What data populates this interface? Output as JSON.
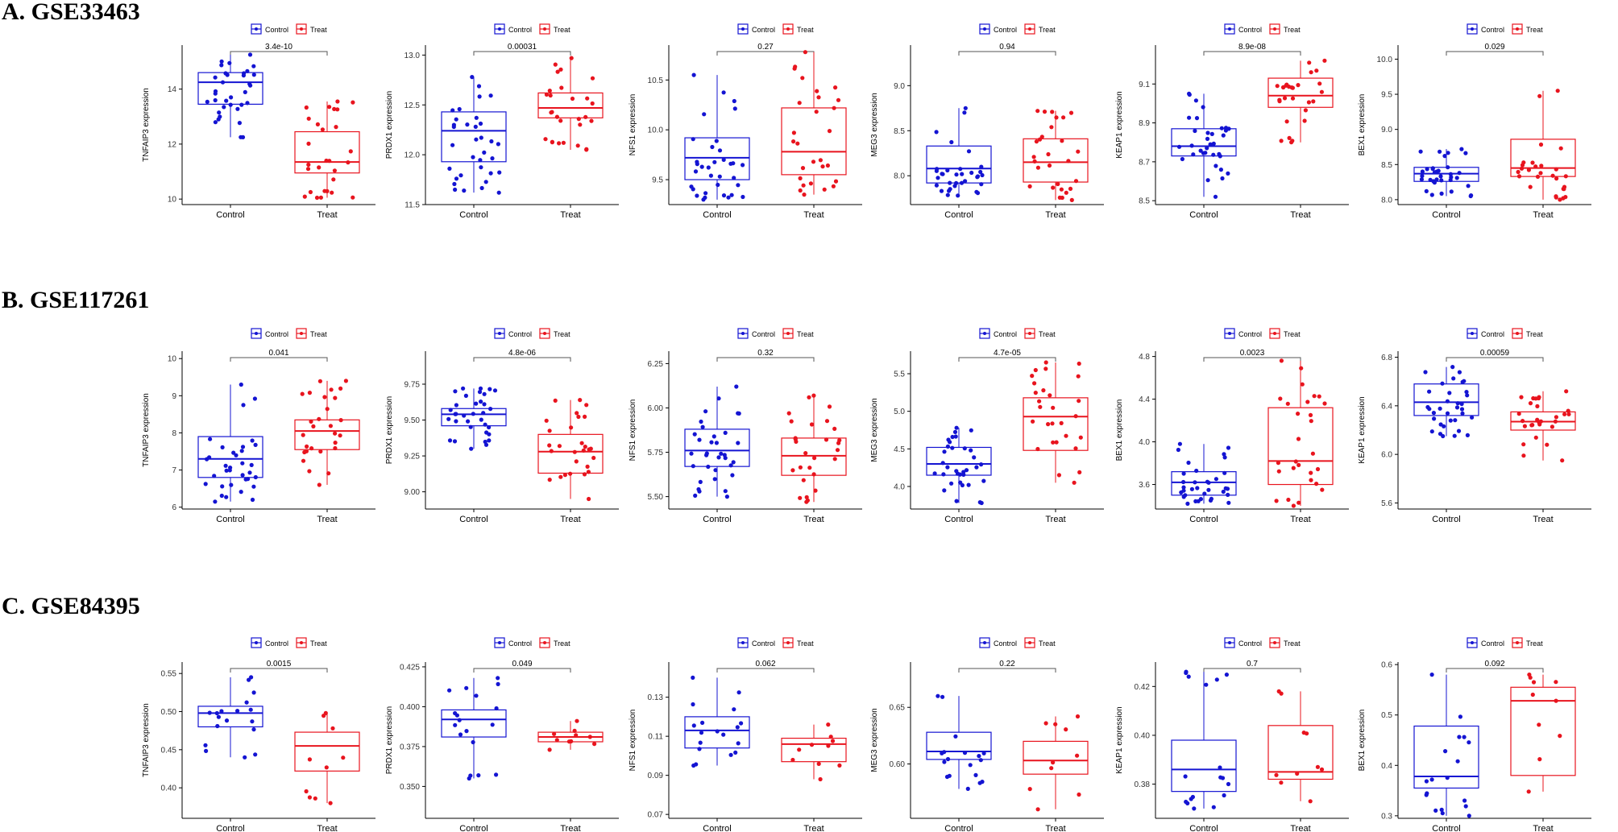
{
  "colors": {
    "control": "#1414d2",
    "treat": "#e8141e",
    "axis": "#000000",
    "bracket": "#555555"
  },
  "chart_data": [
    {
      "section": "A. GSE33463",
      "panels": [
        {
          "type": "box",
          "ylabel": "TNFAIP3 expression",
          "categories": [
            "Control",
            "Treat"
          ],
          "legend": [
            "Control",
            "Treat"
          ],
          "pvalue": "3.4e-10",
          "ylim": [
            9.8,
            15.6
          ],
          "ticks": [
            10,
            12,
            14
          ],
          "tick_labels": [
            "10",
            "12",
            "14"
          ],
          "boxes": [
            {
              "q1": 13.45,
              "median": 14.25,
              "q3": 14.6,
              "whisker_low": 12.25,
              "whisker_high": 15.25
            },
            {
              "q1": 10.95,
              "median": 11.35,
              "q3": 12.45,
              "whisker_low": 10.05,
              "whisker_high": 13.55
            }
          ]
        },
        {
          "type": "box",
          "ylabel": "PRDX1 expression",
          "categories": [
            "Control",
            "Treat"
          ],
          "legend": [
            "Control",
            "Treat"
          ],
          "pvalue": "0.00031",
          "ylim": [
            11.5,
            13.1
          ],
          "ticks": [
            11.5,
            12.0,
            12.5,
            13.0
          ],
          "tick_labels": [
            "11.5",
            "12.0",
            "12.5",
            "13.0"
          ],
          "boxes": [
            {
              "q1": 11.93,
              "median": 12.24,
              "q3": 12.43,
              "whisker_low": 11.62,
              "whisker_high": 12.78
            },
            {
              "q1": 12.37,
              "median": 12.47,
              "q3": 12.62,
              "whisker_low": 12.05,
              "whisker_high": 12.97
            }
          ]
        },
        {
          "type": "box",
          "ylabel": "NFS1 expression",
          "categories": [
            "Control",
            "Treat"
          ],
          "legend": [
            "Control",
            "Treat"
          ],
          "pvalue": "0.27",
          "ylim": [
            9.25,
            10.85
          ],
          "ticks": [
            9.5,
            10.0,
            10.5
          ],
          "tick_labels": [
            "9.5",
            "10.0",
            "10.5"
          ],
          "boxes": [
            {
              "q1": 9.5,
              "median": 9.72,
              "q3": 9.92,
              "whisker_low": 9.3,
              "whisker_high": 10.55
            },
            {
              "q1": 9.55,
              "median": 9.78,
              "q3": 10.22,
              "whisker_low": 9.35,
              "whisker_high": 10.78
            }
          ]
        },
        {
          "type": "box",
          "ylabel": "MEG3 expression",
          "categories": [
            "Control",
            "Treat"
          ],
          "legend": [
            "Control",
            "Treat"
          ],
          "pvalue": "0.94",
          "ylim": [
            7.68,
            9.45
          ],
          "ticks": [
            8.0,
            8.5,
            9.0
          ],
          "tick_labels": [
            "8.0",
            "8.5",
            "9.0"
          ],
          "boxes": [
            {
              "q1": 7.92,
              "median": 8.08,
              "q3": 8.33,
              "whisker_low": 7.78,
              "whisker_high": 8.75
            },
            {
              "q1": 7.93,
              "median": 8.15,
              "q3": 8.41,
              "whisker_low": 7.73,
              "whisker_high": 8.72
            }
          ]
        },
        {
          "type": "box",
          "ylabel": "KEAP1 expression",
          "categories": [
            "Control",
            "Treat"
          ],
          "legend": [
            "Control",
            "Treat"
          ],
          "pvalue": "8.9e-08",
          "ylim": [
            8.48,
            9.3
          ],
          "ticks": [
            8.5,
            8.7,
            8.9,
            9.1
          ],
          "tick_labels": [
            "8.5",
            "8.7",
            "8.9",
            "9.1"
          ],
          "boxes": [
            {
              "q1": 8.73,
              "median": 8.78,
              "q3": 8.87,
              "whisker_low": 8.52,
              "whisker_high": 9.05
            },
            {
              "q1": 8.98,
              "median": 9.04,
              "q3": 9.13,
              "whisker_low": 8.8,
              "whisker_high": 9.22
            }
          ]
        },
        {
          "type": "box",
          "ylabel": "BEX1 expression",
          "categories": [
            "Control",
            "Treat"
          ],
          "legend": [
            "Control",
            "Treat"
          ],
          "pvalue": "0.029",
          "ylim": [
            7.93,
            10.2
          ],
          "ticks": [
            8.0,
            8.5,
            9.0,
            9.5,
            10.0
          ],
          "tick_labels": [
            "8.0",
            "8.5",
            "9.0",
            "9.5",
            "10.0"
          ],
          "boxes": [
            {
              "q1": 8.26,
              "median": 8.37,
              "q3": 8.46,
              "whisker_low": 8.05,
              "whisker_high": 8.72
            },
            {
              "q1": 8.33,
              "median": 8.45,
              "q3": 8.86,
              "whisker_low": 8.0,
              "whisker_high": 9.55
            }
          ]
        }
      ]
    },
    {
      "section": "B. GSE117261",
      "panels": [
        {
          "type": "box",
          "ylabel": "TNFAIP3 expression",
          "categories": [
            "Control",
            "Treat"
          ],
          "legend": [
            "Control",
            "Treat"
          ],
          "pvalue": "0.041",
          "ylim": [
            5.95,
            10.2
          ],
          "ticks": [
            6,
            7,
            8,
            9,
            10
          ],
          "tick_labels": [
            "6",
            "7",
            "8",
            "9",
            "10"
          ],
          "boxes": [
            {
              "q1": 6.8,
              "median": 7.3,
              "q3": 7.9,
              "whisker_low": 6.15,
              "whisker_high": 9.3
            },
            {
              "q1": 7.55,
              "median": 8.05,
              "q3": 8.35,
              "whisker_low": 6.6,
              "whisker_high": 9.4
            }
          ]
        },
        {
          "type": "box",
          "ylabel": "PRDX1 expression",
          "categories": [
            "Control",
            "Treat"
          ],
          "legend": [
            "Control",
            "Treat"
          ],
          "pvalue": "4.8e-06",
          "ylim": [
            8.88,
            9.98
          ],
          "ticks": [
            9.0,
            9.25,
            9.5,
            9.75
          ],
          "tick_labels": [
            "9.00",
            "9.25",
            "9.50",
            "9.75"
          ],
          "boxes": [
            {
              "q1": 9.46,
              "median": 9.54,
              "q3": 9.58,
              "whisker_low": 9.3,
              "whisker_high": 9.72
            },
            {
              "q1": 9.13,
              "median": 9.28,
              "q3": 9.4,
              "whisker_low": 8.95,
              "whisker_high": 9.64
            }
          ]
        },
        {
          "type": "box",
          "ylabel": "NFS1 expression",
          "categories": [
            "Control",
            "Treat"
          ],
          "legend": [
            "Control",
            "Treat"
          ],
          "pvalue": "0.32",
          "ylim": [
            5.43,
            6.32
          ],
          "ticks": [
            5.5,
            5.75,
            6.0,
            6.25
          ],
          "tick_labels": [
            "5.50",
            "5.75",
            "6.00",
            "6.25"
          ],
          "boxes": [
            {
              "q1": 5.67,
              "median": 5.76,
              "q3": 5.88,
              "whisker_low": 5.5,
              "whisker_high": 6.12
            },
            {
              "q1": 5.62,
              "median": 5.73,
              "q3": 5.83,
              "whisker_low": 5.47,
              "whisker_high": 6.07
            }
          ]
        },
        {
          "type": "box",
          "ylabel": "MEG3 expression",
          "categories": [
            "Control",
            "Treat"
          ],
          "legend": [
            "Control",
            "Treat"
          ],
          "pvalue": "4.7e-05",
          "ylim": [
            3.7,
            5.8
          ],
          "ticks": [
            4.0,
            4.5,
            5.0,
            5.5
          ],
          "tick_labels": [
            "4.0",
            "4.5",
            "5.0",
            "5.5"
          ],
          "boxes": [
            {
              "q1": 4.15,
              "median": 4.3,
              "q3": 4.52,
              "whisker_low": 3.78,
              "whisker_high": 4.78
            },
            {
              "q1": 4.48,
              "median": 4.93,
              "q3": 5.18,
              "whisker_low": 4.05,
              "whisker_high": 5.65
            }
          ]
        },
        {
          "type": "box",
          "ylabel": "BEX1 expression",
          "categories": [
            "Control",
            "Treat"
          ],
          "legend": [
            "Control",
            "Treat"
          ],
          "pvalue": "0.0023",
          "ylim": [
            3.37,
            4.85
          ],
          "ticks": [
            3.6,
            4.0,
            4.4,
            4.8
          ],
          "tick_labels": [
            "3.6",
            "4.0",
            "4.4",
            "4.8"
          ],
          "boxes": [
            {
              "q1": 3.5,
              "median": 3.62,
              "q3": 3.72,
              "whisker_low": 3.42,
              "whisker_high": 3.98
            },
            {
              "q1": 3.6,
              "median": 3.82,
              "q3": 4.32,
              "whisker_low": 3.4,
              "whisker_high": 4.76
            }
          ]
        },
        {
          "type": "box",
          "ylabel": "KEAP1 expression",
          "categories": [
            "Control",
            "Treat"
          ],
          "legend": [
            "Control",
            "Treat"
          ],
          "pvalue": "0.00059",
          "ylim": [
            5.55,
            6.85
          ],
          "ticks": [
            5.6,
            6.0,
            6.4,
            6.8
          ],
          "tick_labels": [
            "5.6",
            "6.0",
            "6.4",
            "6.8"
          ],
          "boxes": [
            {
              "q1": 6.32,
              "median": 6.43,
              "q3": 6.58,
              "whisker_low": 6.15,
              "whisker_high": 6.72
            },
            {
              "q1": 6.2,
              "median": 6.27,
              "q3": 6.35,
              "whisker_low": 5.95,
              "whisker_high": 6.52
            }
          ]
        }
      ]
    },
    {
      "section": "C. GSE84395",
      "panels": [
        {
          "type": "box",
          "ylabel": "TNFAIP3 expression",
          "categories": [
            "Control",
            "Treat"
          ],
          "legend": [
            "Control",
            "Treat"
          ],
          "pvalue": "0.0015",
          "ylim": [
            0.36,
            0.565
          ],
          "ticks": [
            0.4,
            0.45,
            0.5,
            0.55
          ],
          "tick_labels": [
            "0.40",
            "0.45",
            "0.50",
            "0.55"
          ],
          "boxes": [
            {
              "q1": 0.48,
              "median": 0.498,
              "q3": 0.507,
              "whisker_low": 0.44,
              "whisker_high": 0.545
            },
            {
              "q1": 0.422,
              "median": 0.455,
              "q3": 0.473,
              "whisker_low": 0.38,
              "whisker_high": 0.498
            }
          ]
        },
        {
          "type": "box",
          "ylabel": "PRDX1 expression",
          "categories": [
            "Control",
            "Treat"
          ],
          "legend": [
            "Control",
            "Treat"
          ],
          "pvalue": "0.049",
          "ylim": [
            0.33,
            0.428
          ],
          "ticks": [
            0.35,
            0.375,
            0.4,
            0.425
          ],
          "tick_labels": [
            "0.350",
            "0.375",
            "0.400",
            "0.425"
          ],
          "boxes": [
            {
              "q1": 0.381,
              "median": 0.392,
              "q3": 0.398,
              "whisker_low": 0.355,
              "whisker_high": 0.418
            },
            {
              "q1": 0.378,
              "median": 0.381,
              "q3": 0.384,
              "whisker_low": 0.373,
              "whisker_high": 0.391
            }
          ]
        },
        {
          "type": "box",
          "ylabel": "NFS1 expression",
          "categories": [
            "Control",
            "Treat"
          ],
          "legend": [
            "Control",
            "Treat"
          ],
          "pvalue": "0.062",
          "ylim": [
            0.068,
            0.148
          ],
          "ticks": [
            0.07,
            0.09,
            0.11,
            0.13
          ],
          "tick_labels": [
            "0.07",
            "0.09",
            "0.11",
            "0.13"
          ],
          "boxes": [
            {
              "q1": 0.104,
              "median": 0.113,
              "q3": 0.12,
              "whisker_low": 0.095,
              "whisker_high": 0.14
            },
            {
              "q1": 0.097,
              "median": 0.106,
              "q3": 0.109,
              "whisker_low": 0.088,
              "whisker_high": 0.116
            }
          ]
        },
        {
          "type": "box",
          "ylabel": "MEG3 expression",
          "categories": [
            "Control",
            "Treat"
          ],
          "legend": [
            "Control",
            "Treat"
          ],
          "pvalue": "0.22",
          "ylim": [
            0.552,
            0.69
          ],
          "ticks": [
            0.6,
            0.65
          ],
          "tick_labels": [
            "0.60",
            "0.65"
          ],
          "boxes": [
            {
              "q1": 0.604,
              "median": 0.611,
              "q3": 0.628,
              "whisker_low": 0.578,
              "whisker_high": 0.66
            },
            {
              "q1": 0.591,
              "median": 0.603,
              "q3": 0.62,
              "whisker_low": 0.56,
              "whisker_high": 0.642
            }
          ]
        },
        {
          "type": "box",
          "ylabel": "KEAP1 expression",
          "categories": [
            "Control",
            "Treat"
          ],
          "legend": [
            "Control",
            "Treat"
          ],
          "pvalue": "0.7",
          "ylim": [
            0.366,
            0.43
          ],
          "ticks": [
            0.38,
            0.4,
            0.42
          ],
          "tick_labels": [
            "0.38",
            "0.40",
            "0.42"
          ],
          "boxes": [
            {
              "q1": 0.377,
              "median": 0.386,
              "q3": 0.398,
              "whisker_low": 0.37,
              "whisker_high": 0.426
            },
            {
              "q1": 0.382,
              "median": 0.385,
              "q3": 0.404,
              "whisker_low": 0.373,
              "whisker_high": 0.418
            }
          ]
        },
        {
          "type": "box",
          "ylabel": "BEX1 expression",
          "categories": [
            "Control",
            "Treat"
          ],
          "legend": [
            "Control",
            "Treat"
          ],
          "pvalue": "0.092",
          "ylim": [
            0.295,
            0.605
          ],
          "ticks": [
            0.3,
            0.4,
            0.5,
            0.6
          ],
          "tick_labels": [
            "0.3",
            "0.4",
            "0.5",
            "0.6"
          ],
          "boxes": [
            {
              "q1": 0.355,
              "median": 0.378,
              "q3": 0.478,
              "whisker_low": 0.3,
              "whisker_high": 0.58
            },
            {
              "q1": 0.38,
              "median": 0.528,
              "q3": 0.555,
              "whisker_low": 0.348,
              "whisker_high": 0.58
            }
          ]
        }
      ]
    }
  ]
}
